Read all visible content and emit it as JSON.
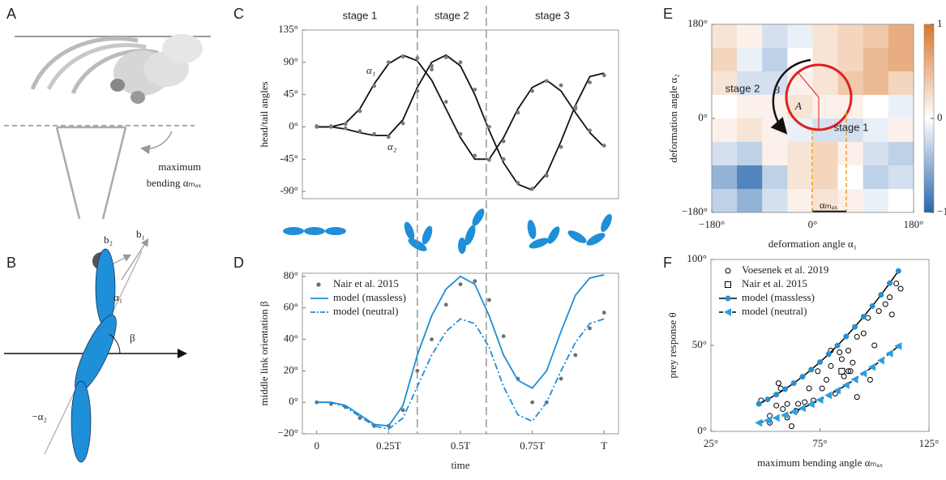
{
  "panels": [
    "A",
    "B",
    "C",
    "D",
    "E",
    "F"
  ],
  "diagram_a": {
    "lines": [
      "maximum",
      "bending αₘₐₓ"
    ]
  },
  "diagram_b": {
    "labels": [
      "b₂",
      "b₁",
      "α₁",
      "β",
      "−α₂"
    ]
  },
  "chart_data": [
    {
      "panel": "C",
      "type": "line",
      "ylabel": "head/tail angles",
      "x": [
        0,
        0.05,
        0.1,
        0.15,
        0.2,
        0.25,
        0.3,
        0.35,
        0.4,
        0.45,
        0.5,
        0.55,
        0.6,
        0.65,
        0.7,
        0.75,
        0.8,
        0.85,
        0.9,
        0.95,
        1
      ],
      "xlim": [
        -0.05,
        1.05
      ],
      "ylim": [
        -100,
        135
      ],
      "yticks": [
        {
          "value": 135,
          "label": "135°"
        },
        {
          "value": 90,
          "label": "90°"
        },
        {
          "value": 45,
          "label": "45°"
        },
        {
          "value": 0,
          "label": "0°"
        },
        {
          "value": -45,
          "label": "-45°"
        },
        {
          "value": -90,
          "label": "-90°"
        }
      ],
      "stages": [
        "stage 1",
        "stage 2",
        "stage 3"
      ],
      "stage_bounds": [
        0.35,
        0.59
      ],
      "series": [
        {
          "name": "α₁",
          "color": "#111111",
          "values": [
            0,
            0,
            5,
            25,
            60,
            88,
            100,
            92,
            65,
            25,
            -15,
            -45,
            -45,
            -15,
            25,
            55,
            65,
            50,
            20,
            -8,
            -28
          ]
        },
        {
          "name": "α₂",
          "color": "#111111",
          "values": [
            0,
            0,
            -3,
            -8,
            -12,
            -12,
            10,
            55,
            90,
            100,
            85,
            45,
            -5,
            -50,
            -80,
            -88,
            -65,
            -20,
            30,
            70,
            75
          ]
        },
        {
          "color": "#7a7a7a",
          "style": "markers",
          "values": [
            1,
            0,
            4,
            22,
            57,
            90,
            98,
            96,
            80,
            35,
            -10,
            -40,
            -46,
            -20,
            20,
            50,
            64,
            58,
            28,
            -5,
            -26
          ]
        },
        {
          "color": "#7a7a7a",
          "style": "markers",
          "values": [
            0,
            1,
            -2,
            -6,
            -10,
            -14,
            5,
            50,
            85,
            97,
            90,
            52,
            0,
            -45,
            -78,
            -86,
            -68,
            -28,
            25,
            62,
            72
          ]
        }
      ]
    },
    {
      "panel": "D",
      "type": "line",
      "xlabel": "time",
      "ylabel": "middle link orientation β",
      "x": [
        0,
        0.05,
        0.1,
        0.15,
        0.2,
        0.25,
        0.3,
        0.35,
        0.4,
        0.45,
        0.5,
        0.55,
        0.6,
        0.65,
        0.7,
        0.75,
        0.8,
        0.85,
        0.9,
        0.95,
        1
      ],
      "xlim": [
        -0.05,
        1.05
      ],
      "ylim": [
        -20,
        82
      ],
      "xticks": [
        0,
        {
          "value": 0.25,
          "label": "0.25T"
        },
        {
          "value": 0.5,
          "label": "0.5T"
        },
        {
          "value": 0.75,
          "label": "0.75T"
        },
        {
          "value": 1,
          "label": "T"
        }
      ],
      "yticks": [
        {
          "value": 80,
          "label": "80°"
        },
        {
          "value": 60,
          "label": "60°"
        },
        {
          "value": 40,
          "label": "40°"
        },
        {
          "value": 20,
          "label": "20°"
        },
        {
          "value": 0,
          "label": "0°"
        },
        {
          "value": -20,
          "label": "−20°"
        }
      ],
      "legend": "upper left",
      "series": [
        {
          "name": "Nair et al. 2015",
          "color": "#6e6e6e",
          "style": "markers",
          "values": [
            0,
            -1,
            -3,
            -10,
            -15,
            -15,
            -5,
            20,
            40,
            62,
            75,
            77,
            65,
            42,
            15,
            0,
            0,
            15,
            30,
            47,
            57
          ]
        },
        {
          "name": "model (massless)",
          "color": "#1f8dd6",
          "values": [
            0,
            0,
            -2,
            -8,
            -14,
            -15,
            -2,
            30,
            55,
            72,
            80,
            75,
            55,
            30,
            14,
            9,
            20,
            45,
            68,
            79,
            81
          ]
        },
        {
          "name": "model (neutral)",
          "color": "#1f8dd6",
          "dash": "dashdot",
          "values": [
            0,
            0,
            -3,
            -9,
            -15,
            -17,
            -10,
            10,
            30,
            45,
            53,
            50,
            35,
            10,
            -8,
            -12,
            0,
            20,
            38,
            50,
            53
          ]
        }
      ]
    },
    {
      "panel": "E",
      "type": "heatmap",
      "xlabel": "deformation angle α₁",
      "ylabel": "deformation angle α₂",
      "xlim": [
        -180,
        180
      ],
      "ylim": [
        -180,
        180
      ],
      "xticks": [
        {
          "value": -180,
          "label": "−180°"
        },
        {
          "value": 0,
          "label": "0°"
        },
        {
          "value": 180,
          "label": "180°"
        }
      ],
      "yticks": [
        {
          "value": 180,
          "label": "180°"
        },
        {
          "value": 0,
          "label": "0°"
        },
        {
          "value": -180,
          "label": "−180°"
        }
      ],
      "zlim": [
        -1,
        1
      ],
      "zticks": [
        1,
        0,
        {
          "value": -1,
          "label": "−1"
        }
      ],
      "annotations": [
        "stage 2",
        "stage 1",
        "B",
        "A",
        "αₘₐₓ"
      ],
      "z": [
        [
          0.2,
          0.1,
          -0.2,
          -0.1,
          0.2,
          0.3,
          0.4,
          0.6
        ],
        [
          0.3,
          -0.1,
          -0.3,
          0,
          0.2,
          0.3,
          0.5,
          0.6
        ],
        [
          0.2,
          -0.2,
          -0.2,
          0.1,
          0.2,
          0.4,
          0.5,
          0.3
        ],
        [
          0,
          0.1,
          0.1,
          0.2,
          0.1,
          0.1,
          0,
          -0.1
        ],
        [
          0.1,
          0.2,
          0.1,
          -0.1,
          -0.2,
          -0.2,
          -0.1,
          0.1
        ],
        [
          -0.2,
          -0.3,
          0.1,
          0.2,
          0.3,
          0.1,
          -0.2,
          -0.3
        ],
        [
          -0.5,
          -0.8,
          -0.3,
          0.2,
          0.3,
          0,
          -0.3,
          -0.2
        ],
        [
          -0.3,
          -0.5,
          -0.2,
          0.1,
          0.2,
          0.1,
          -0.1,
          0
        ]
      ]
    },
    {
      "panel": "F",
      "type": "scatter",
      "xlabel": "maximum bending angle αₘₐₓ",
      "ylabel": "prey response θ",
      "xlim": [
        25,
        125
      ],
      "ylim": [
        0,
        100
      ],
      "xticks": [
        {
          "value": 25,
          "label": "25°"
        },
        {
          "value": 75,
          "label": "75°"
        },
        {
          "value": 125,
          "label": "125°"
        }
      ],
      "yticks": [
        {
          "value": 0,
          "label": "0°"
        },
        {
          "value": 50,
          "label": "50°"
        },
        {
          "value": 100,
          "label": "100°"
        }
      ],
      "legend": "upper left",
      "series": [
        {
          "name": "Voesenek et al. 2019",
          "marker": "circle",
          "color": "#000000",
          "x": [
            48,
            52,
            52,
            55,
            56,
            57,
            58,
            60,
            62,
            60,
            64,
            65,
            68,
            70,
            72,
            74,
            76,
            78,
            80,
            82,
            84,
            85,
            86,
            88,
            89,
            90,
            92,
            95,
            97,
            100,
            102,
            105,
            107,
            108,
            110,
            112,
            80,
            88,
            92,
            98
          ],
          "values": [
            18,
            9,
            5,
            15,
            28,
            25,
            13,
            8,
            3,
            16,
            12,
            16,
            17,
            25,
            18,
            35,
            25,
            30,
            38,
            22,
            46,
            42,
            32,
            47,
            35,
            40,
            55,
            57,
            66,
            50,
            70,
            74,
            78,
            68,
            86,
            83,
            47,
            35,
            20,
            30
          ]
        },
        {
          "name": "Nair et al. 2015",
          "marker": "square",
          "color": "#000000",
          "x": [
            85
          ],
          "values": [
            35
          ]
        },
        {
          "name": "model (massless)",
          "marker": "circle",
          "line": "solid",
          "color": "#000000",
          "marker_color": "#2a8fd0",
          "x": [
            47,
            51,
            55,
            59,
            63,
            67,
            71,
            75,
            79,
            83,
            87,
            91,
            95,
            99,
            103,
            107,
            111
          ],
          "values": [
            16,
            18.6,
            21.4,
            24.6,
            28,
            31.8,
            35.9,
            40.3,
            44.9,
            49.9,
            55.2,
            60.8,
            66.7,
            72.9,
            79.4,
            86.2,
            93.3
          ]
        },
        {
          "name": "model (neutral)",
          "marker": "triangle",
          "line": "dashed",
          "color": "#000000",
          "marker_color": "#2a9fe0",
          "x": [
            47,
            51,
            55,
            59,
            63,
            67,
            71,
            75,
            79,
            83,
            87,
            91,
            95,
            99,
            103,
            107,
            111
          ],
          "values": [
            5,
            6.3,
            7.8,
            9.5,
            11.4,
            13.5,
            15.8,
            18.3,
            21,
            23.8,
            26.9,
            30.2,
            33.7,
            37.4,
            41.2,
            45.3,
            49.6
          ]
        }
      ]
    }
  ]
}
